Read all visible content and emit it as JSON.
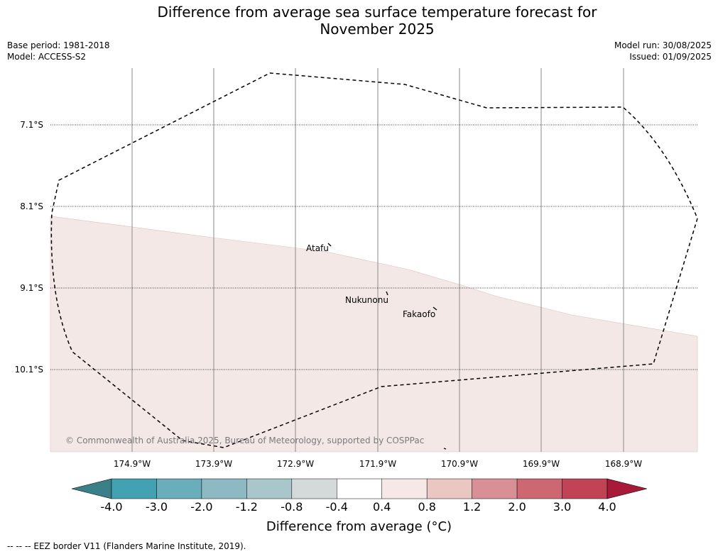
{
  "title_line1": "Difference from average sea surface temperature forecast for",
  "title_line2": "November 2025",
  "base_period": "Base period: 1981-2018",
  "model": "Model: ACCESS-S2",
  "model_run": "Model run: 30/08/2025",
  "issued": "Issued: 01/09/2025",
  "lat_labels": [
    "7.1°S",
    "8.1°S",
    "9.1°S",
    "10.1°S"
  ],
  "lon_labels": [
    "174.9°W",
    "173.9°W",
    "172.9°W",
    "171.9°W",
    "170.9°W",
    "169.9°W",
    "168.9°W"
  ],
  "places": {
    "atafu": "Atafu",
    "nukunonu": "Nukunonu",
    "fakaofo": "Fakaofo"
  },
  "copyright": "© Commonwealth of Australia 2025, Bureau of Meteorology, supported by COSPPac",
  "colorbar": {
    "title": "Difference from average (°C)",
    "tick_labels": [
      "-4.0",
      "-3.0",
      "-2.0",
      "-1.2",
      "-0.8",
      "-0.4",
      "0.4",
      "0.8",
      "1.2",
      "2.0",
      "3.0",
      "4.0"
    ],
    "colors": [
      "#3b7f88",
      "#43a2b2",
      "#6baebb",
      "#8db9c2",
      "#a9c7cb",
      "#d3dad9",
      "#ffffff",
      "#f6e8e6",
      "#eac7c2",
      "#d88f96",
      "#cd6872",
      "#c04455",
      "#a71a38"
    ]
  },
  "footnote": "--  --  -- EEZ border V11 (Flanders Marine Institute, 2019).",
  "colors": {
    "anomaly_fill": "#f4e8e6"
  }
}
